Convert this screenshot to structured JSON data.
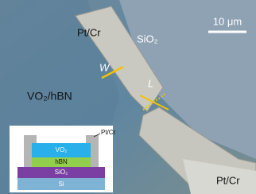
{
  "labels": {
    "contact_top": "Pt/Cr",
    "substrate": "SiO₂",
    "scale_bar": "10 μm",
    "width": "W",
    "length": "L",
    "channel": "VO₂/hBN",
    "contact_bottom": "Pt/Cr"
  },
  "inset": {
    "contact": "Pt/Cr",
    "layers": [
      "VO₂",
      "hBN",
      "SiO₂",
      "Si"
    ]
  }
}
